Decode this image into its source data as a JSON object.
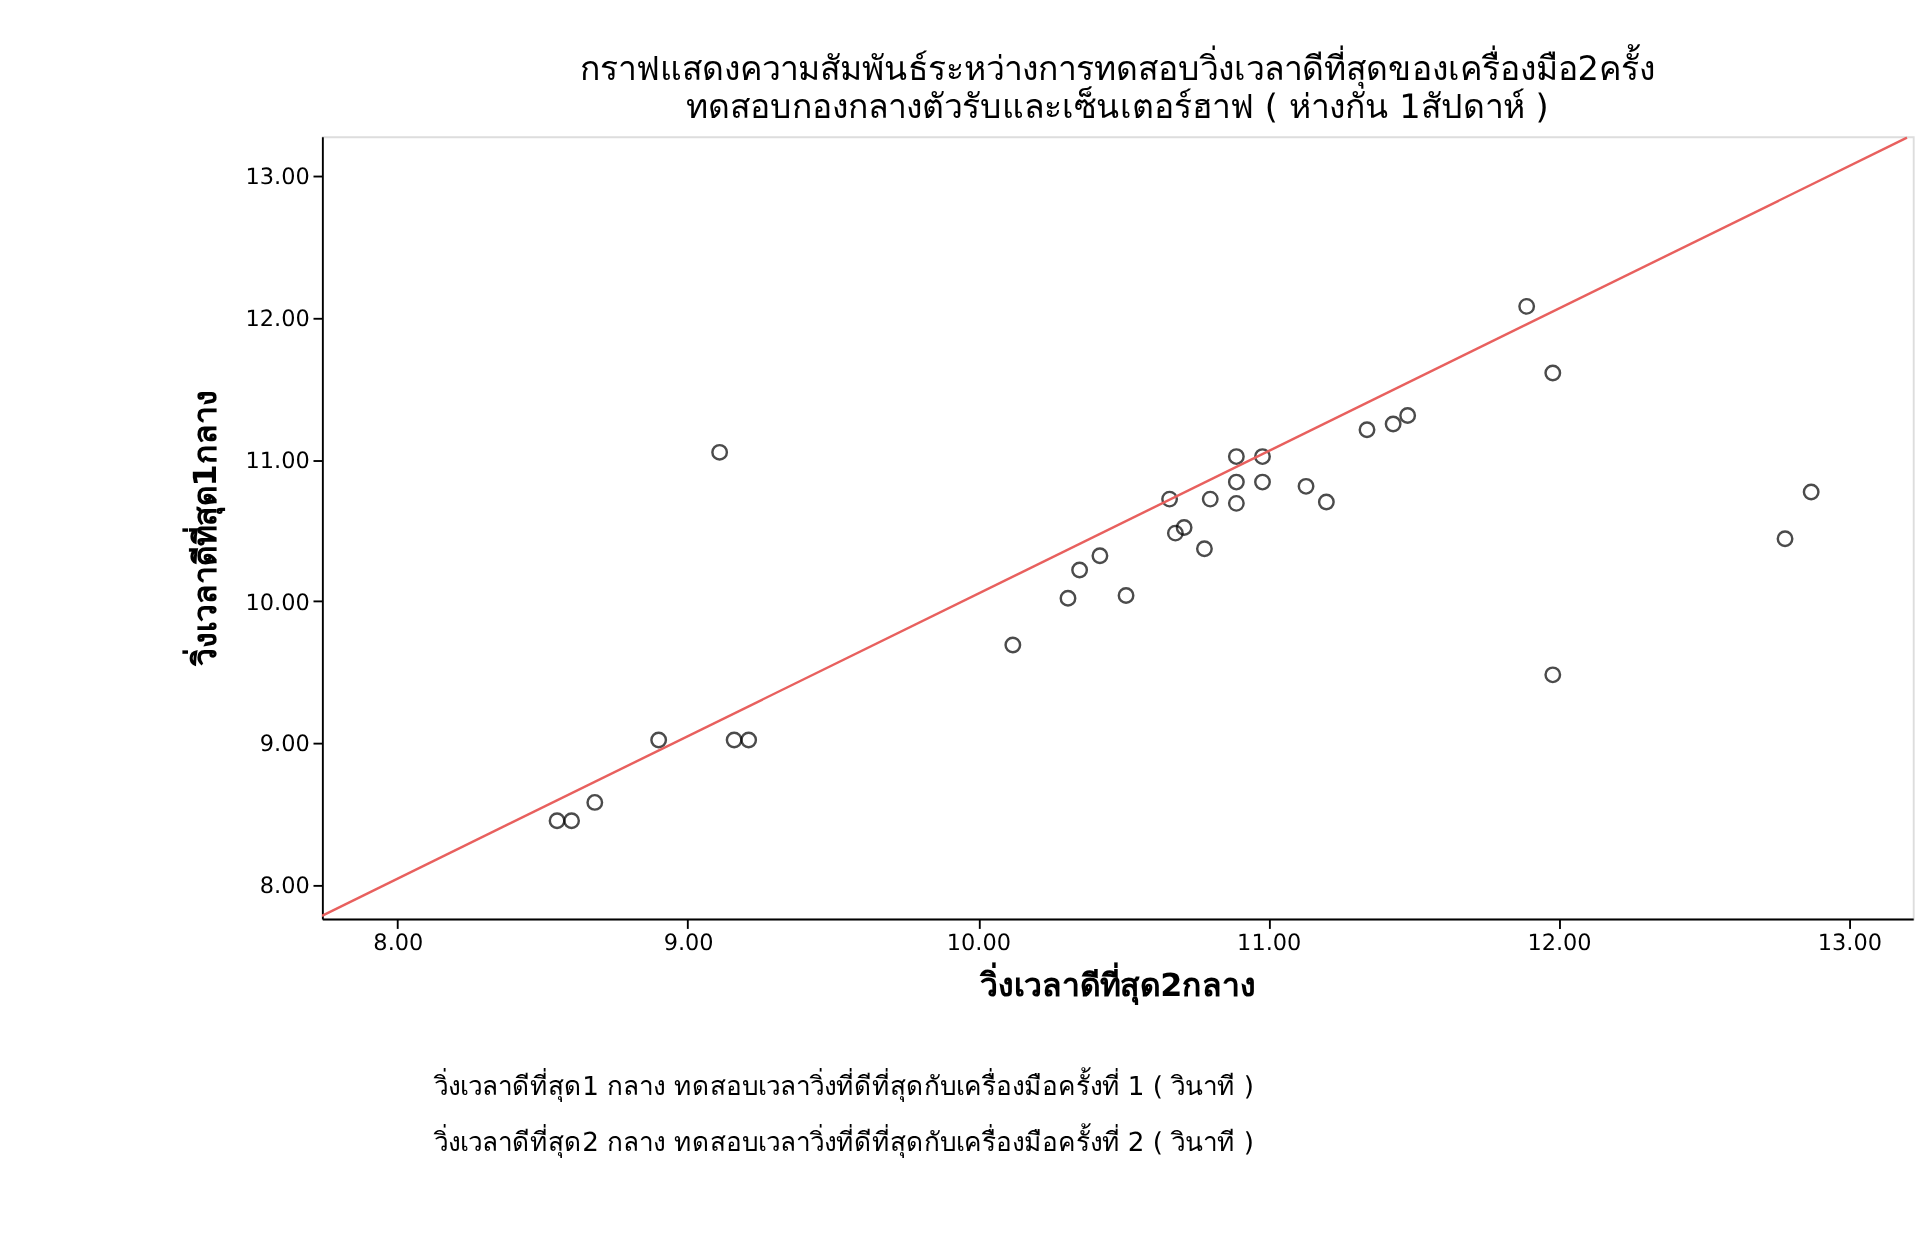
{
  "chart_data": {
    "type": "scatter",
    "title": [
      "กราฟแสดงความสัมพันธ์ระหว่างการทดสอบวิ่งเวลาดีที่สุดของเครื่องมือ2ครั้ง",
      "ทดสอบกองกลางตัวรับและเซ็นเตอร์ฮาฟ ( ห่างกัน 1สัปดาห์ )"
    ],
    "xlabel": "วิ่งเวลาดีที่สุด2กลาง",
    "ylabel": "วิ่งเวลาดีที่สุด1กลาง",
    "annotations": [
      "วิ่งเวลาดีที่สุด1 กลาง ทดสอบเวลาวิ่งที่ดีที่สุดกับเครื่องมือครั้งที่ 1 ( วินาที )",
      "วิ่งเวลาดีที่สุด2 กลาง ทดสอบเวลาวิ่งที่ดีที่สุดกับเครื่องมือครั้งที่ 2 ( วินาที )"
    ],
    "xlim": [
      7.74,
      13.22
    ],
    "ylim": [
      7.76,
      13.28
    ],
    "xticks": [
      {
        "value": 8,
        "label": "8.00"
      },
      {
        "value": 9,
        "label": "9.00"
      },
      {
        "value": 10,
        "label": "10.00"
      },
      {
        "value": 11,
        "label": "11.00"
      },
      {
        "value": 12,
        "label": "12.00"
      },
      {
        "value": 13,
        "label": "13.00"
      }
    ],
    "yticks": [
      {
        "value": 8,
        "label": "8.00"
      },
      {
        "value": 9,
        "label": "9.00"
      },
      {
        "value": 10,
        "label": "10.00"
      },
      {
        "value": 11,
        "label": "11.00"
      },
      {
        "value": 12,
        "label": "12.00"
      },
      {
        "value": 13,
        "label": "13.00"
      }
    ],
    "grid": false,
    "legend": false,
    "series": [
      {
        "type": "scatter",
        "color": "#000000",
        "marker": "circle",
        "x": [
          8.55,
          8.6,
          8.68,
          8.9,
          9.16,
          9.21,
          9.11,
          10.12,
          10.31,
          10.35,
          10.42,
          10.51,
          10.66,
          10.68,
          10.71,
          10.78,
          10.8,
          10.89,
          10.89,
          10.89,
          10.98,
          10.98,
          11.13,
          11.2,
          11.34,
          11.43,
          11.48,
          11.89,
          11.98,
          11.98,
          12.78,
          12.87
        ],
        "values": [
          8.45,
          8.45,
          8.58,
          9.02,
          9.02,
          9.02,
          11.05,
          9.69,
          10.02,
          10.22,
          10.32,
          10.04,
          10.72,
          10.48,
          10.52,
          10.37,
          10.72,
          11.02,
          10.84,
          10.69,
          11.02,
          10.84,
          10.81,
          10.7,
          11.21,
          11.25,
          11.31,
          12.08,
          11.61,
          9.48,
          10.44,
          10.77
        ]
      },
      {
        "type": "line",
        "color": "#e8605e",
        "marker": "none",
        "line_style": "solid",
        "x": [
          7.74,
          13.2
        ],
        "values": [
          7.78,
          13.27
        ]
      }
    ]
  }
}
